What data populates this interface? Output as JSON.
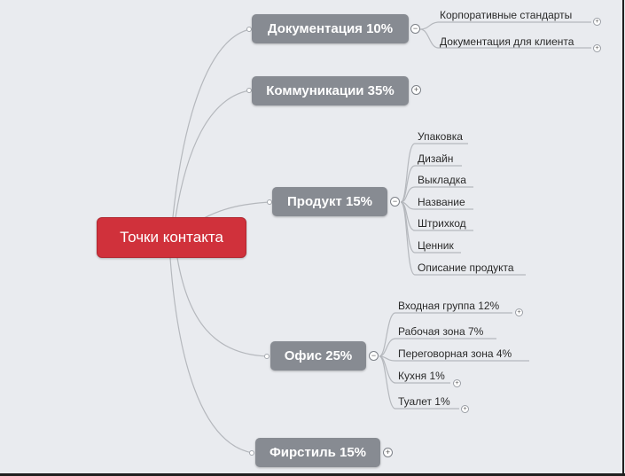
{
  "central": {
    "label": "Точки контакта"
  },
  "branches": [
    {
      "label": "Документация 10%",
      "state": "expanded",
      "children": [
        {
          "label": "Корпоративные стандарты",
          "has_more": true
        },
        {
          "label": "Документация для клиента",
          "has_more": true
        }
      ]
    },
    {
      "label": "Коммуникации 35%",
      "state": "collapsed",
      "children": []
    },
    {
      "label": "Продукт 15%",
      "state": "expanded",
      "children": [
        {
          "label": "Упаковка",
          "has_more": false
        },
        {
          "label": "Дизайн",
          "has_more": false
        },
        {
          "label": "Выкладка",
          "has_more": false
        },
        {
          "label": "Название",
          "has_more": false
        },
        {
          "label": "Штрихкод",
          "has_more": false
        },
        {
          "label": "Ценник",
          "has_more": false
        },
        {
          "label": "Описание продукта",
          "has_more": false
        }
      ]
    },
    {
      "label": "Офис 25%",
      "state": "expanded",
      "children": [
        {
          "label": "Входная группа 12%",
          "has_more": true
        },
        {
          "label": "Рабочая зона 7%",
          "has_more": false
        },
        {
          "label": "Переговорная зона 4%",
          "has_more": false
        },
        {
          "label": "Кухня 1%",
          "has_more": true
        },
        {
          "label": "Туалет 1%",
          "has_more": true
        }
      ]
    },
    {
      "label": "Фирстиль 15%",
      "state": "collapsed",
      "children": []
    }
  ],
  "icons": {
    "expanded": "minus-circle-icon",
    "collapsed": "plus-circle-icon"
  },
  "colors": {
    "central": "#d0313b",
    "branch": "#878b92",
    "line": "#b5b8bd",
    "background": "#e9ebef"
  }
}
